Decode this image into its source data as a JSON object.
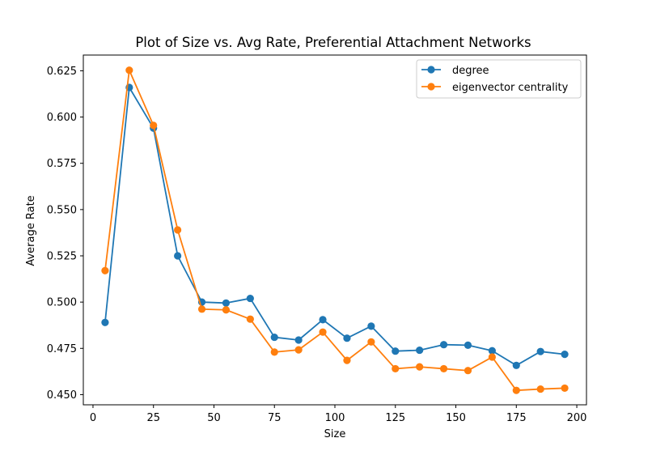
{
  "chart_data": {
    "type": "line",
    "title": "Plot of Size vs. Avg Rate, Preferential Attachment Networks",
    "xlabel": "Size",
    "ylabel": "Average Rate",
    "xlim": [
      -4,
      204
    ],
    "ylim": [
      0.4445,
      0.6335
    ],
    "xticks": [
      0,
      25,
      50,
      75,
      100,
      125,
      150,
      175,
      200
    ],
    "yticks": [
      0.45,
      0.475,
      0.5,
      0.525,
      0.55,
      0.575,
      0.6,
      0.625
    ],
    "ytick_labels": [
      "0.450",
      "0.475",
      "0.500",
      "0.525",
      "0.550",
      "0.575",
      "0.600",
      "0.625"
    ],
    "grid": false,
    "legend_position": "top-right",
    "x": [
      5,
      15,
      25,
      35,
      45,
      55,
      65,
      75,
      85,
      95,
      105,
      115,
      125,
      135,
      145,
      155,
      165,
      175,
      185,
      195
    ],
    "series": [
      {
        "name": "degree",
        "color": "#1f77b4",
        "values": [
          0.489,
          0.616,
          0.594,
          0.525,
          0.5,
          0.4995,
          0.502,
          0.481,
          0.4795,
          0.4905,
          0.4805,
          0.487,
          0.4735,
          0.474,
          0.477,
          0.4767,
          0.4737,
          0.4658,
          0.4733,
          0.4718
        ]
      },
      {
        "name": "eigenvector centrality",
        "color": "#ff7f0e",
        "values": [
          0.517,
          0.6253,
          0.5955,
          0.539,
          0.4962,
          0.4958,
          0.4908,
          0.473,
          0.4742,
          0.4838,
          0.4685,
          0.4785,
          0.464,
          0.465,
          0.464,
          0.463,
          0.4703,
          0.4523,
          0.453,
          0.4535
        ]
      }
    ]
  }
}
